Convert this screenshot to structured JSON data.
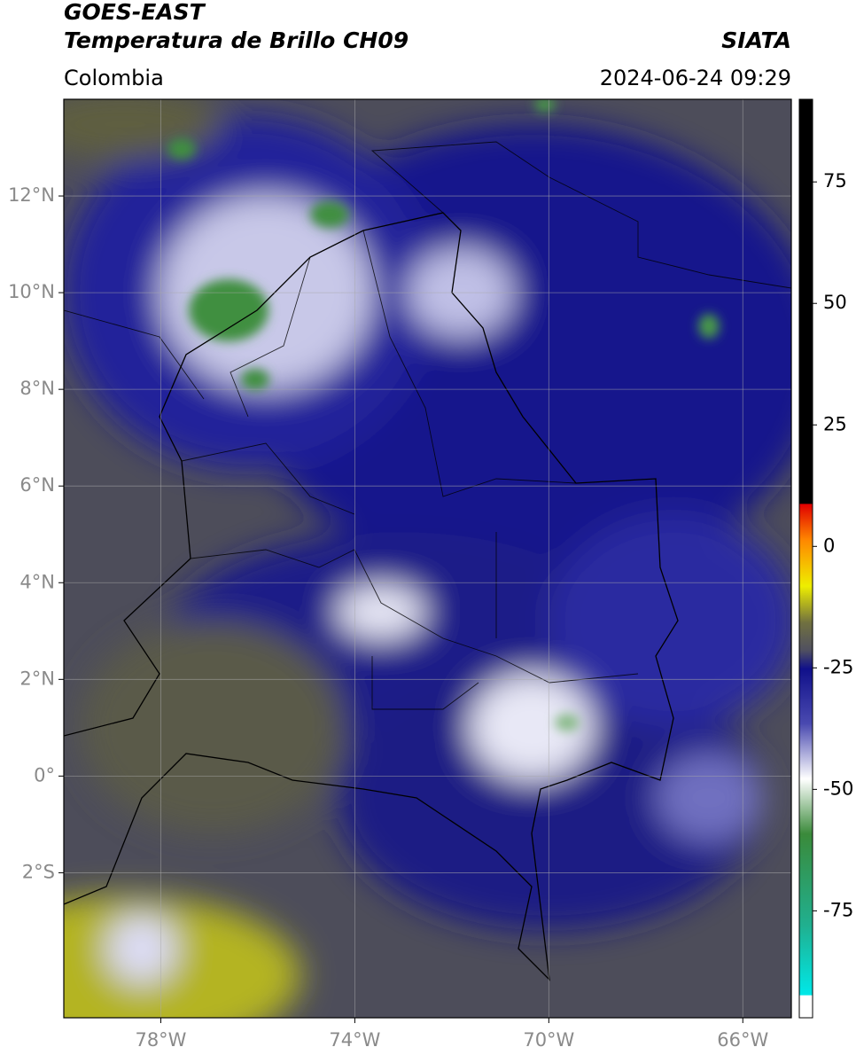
{
  "header": {
    "title": "GOES-EAST",
    "subtitle": "Temperatura de Brillo CH09",
    "source": "SIATA",
    "region": "Colombia",
    "timestamp": "2024-06-24 09:29"
  },
  "map": {
    "xlim": [
      -80,
      -65
    ],
    "ylim": [
      -5,
      14
    ],
    "grid": true,
    "xticks": [
      {
        "value": -78,
        "label": "78°W"
      },
      {
        "value": -74,
        "label": "74°W"
      },
      {
        "value": -70,
        "label": "70°W"
      },
      {
        "value": -66,
        "label": "66°W"
      }
    ],
    "yticks": [
      {
        "value": 12,
        "label": "12°N"
      },
      {
        "value": 10,
        "label": "10°N"
      },
      {
        "value": 8,
        "label": "8°N"
      },
      {
        "value": 6,
        "label": "6°N"
      },
      {
        "value": 4,
        "label": "4°N"
      },
      {
        "value": 2,
        "label": "2°N"
      },
      {
        "value": 0,
        "label": "0°"
      },
      {
        "value": -2,
        "label": "2°S"
      }
    ]
  },
  "colorbar": {
    "lim": [
      -97,
      92
    ],
    "ticks": [
      75,
      50,
      25,
      0,
      -25,
      -50,
      -75
    ]
  }
}
